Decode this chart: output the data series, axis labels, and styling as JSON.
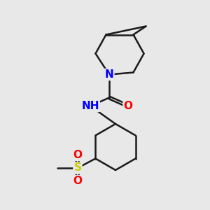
{
  "background_color": "#e8e8e8",
  "bond_color": "#1a1a1a",
  "bond_width": 1.8,
  "atom_colors": {
    "N": "#0000ff",
    "O": "#ff0000",
    "S": "#cccc00",
    "C": "#1a1a1a",
    "H": "#808080"
  },
  "font_size_atom": 11,
  "figsize": [
    3.0,
    3.0
  ],
  "dpi": 100
}
